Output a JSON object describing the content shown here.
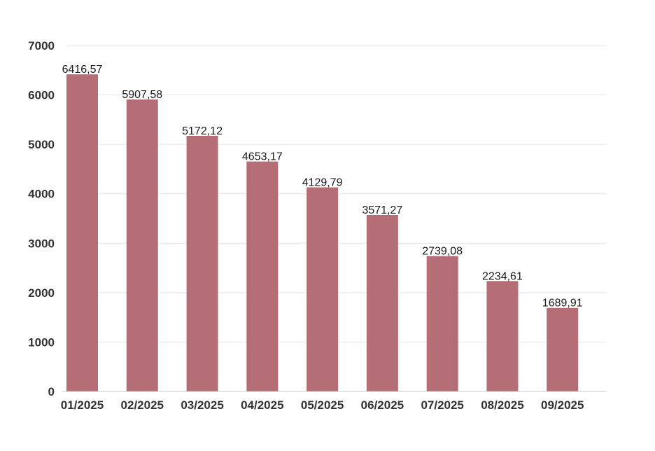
{
  "chart_data": {
    "type": "bar",
    "title": "",
    "xlabel": "",
    "ylabel": "",
    "categories": [
      "01/2025",
      "02/2025",
      "03/2025",
      "04/2025",
      "05/2025",
      "06/2025",
      "07/2025",
      "08/2025",
      "09/2025"
    ],
    "values": [
      6416.57,
      5907.58,
      5172.12,
      4653.17,
      4129.79,
      3571.27,
      2739.08,
      2234.61,
      1689.91
    ],
    "value_labels": [
      "6416,57",
      "5907,58",
      "5172,12",
      "4653,17",
      "4129,79",
      "3571,27",
      "2739,08",
      "2234,61",
      "1689,91"
    ],
    "ylim": [
      0,
      7000
    ],
    "yticks": [
      "0",
      "1000",
      "2000",
      "3000",
      "4000",
      "5000",
      "6000",
      "7000"
    ],
    "grid": true,
    "legend": "none",
    "bar_color": "#b56e75"
  }
}
